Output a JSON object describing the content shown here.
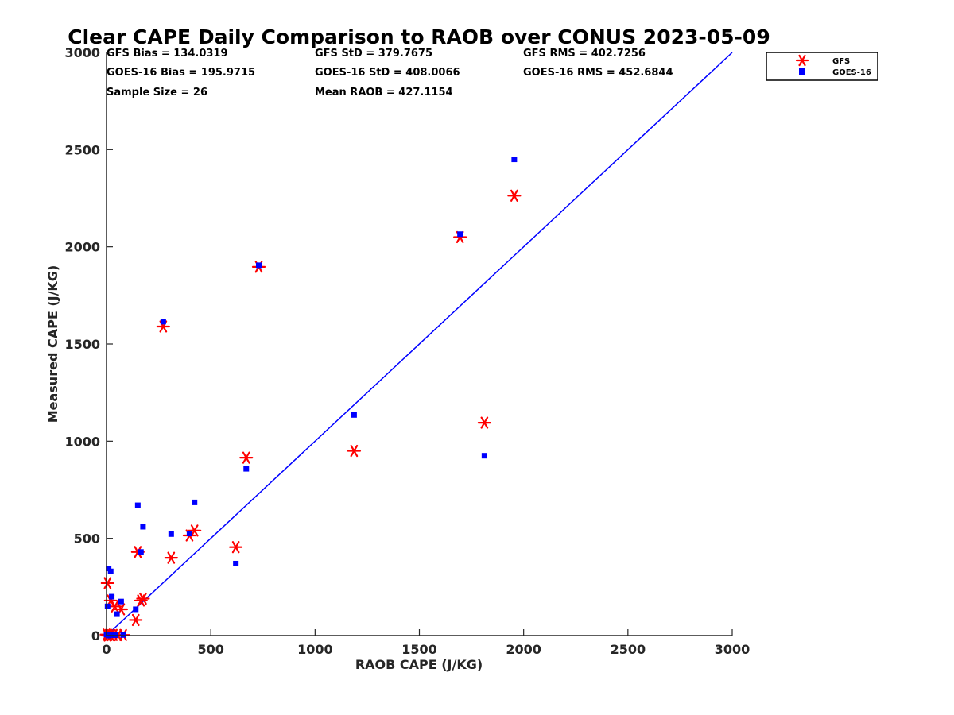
{
  "chart_data": {
    "type": "scatter",
    "title": "Clear CAPE Daily Comparison to RAOB over CONUS 2023-05-09",
    "xlabel": "RAOB CAPE (J/KG)",
    "ylabel": "Measured CAPE (J/KG)",
    "xlim": [
      0,
      3000
    ],
    "ylim": [
      0,
      3000
    ],
    "x_ticks": [
      0,
      500,
      1000,
      1500,
      2000,
      2500,
      3000
    ],
    "y_ticks": [
      0,
      500,
      1000,
      1500,
      2000,
      2500,
      3000
    ],
    "x_tick_labels": [
      "0",
      "500",
      "1000",
      "1500",
      "2000",
      "2500",
      "3000"
    ],
    "y_tick_labels": [
      "0",
      "500",
      "1000",
      "1500",
      "2000",
      "2500",
      "3000"
    ],
    "grid": false,
    "legend_position": "top-right",
    "reference_line": {
      "x": [
        0,
        3000
      ],
      "y": [
        0,
        3000
      ],
      "color": "#0000ff"
    },
    "stats": [
      [
        "GFS Bias = 134.0319",
        "GFS StD = 379.7675",
        "GFS RMS = 402.7256"
      ],
      [
        "GOES-16 Bias = 195.9715",
        "GOES-16 StD = 408.0066",
        "GOES-16 RMS = 452.6844"
      ],
      [
        "Sample Size = 26",
        "Mean RAOB = 427.1154",
        ""
      ]
    ],
    "series": [
      {
        "name": "GFS",
        "marker": "asterisk",
        "color": "#ff0000",
        "points": [
          [
            1955,
            2263
          ],
          [
            1695,
            2050
          ],
          [
            730,
            1897
          ],
          [
            272,
            1590
          ],
          [
            1812,
            1095
          ],
          [
            1187,
            950
          ],
          [
            670,
            915
          ],
          [
            422,
            540
          ],
          [
            398,
            515
          ],
          [
            620,
            455
          ],
          [
            150,
            430
          ],
          [
            310,
            400
          ],
          [
            5,
            270
          ],
          [
            20,
            180
          ],
          [
            40,
            150
          ],
          [
            70,
            135
          ],
          [
            175,
            190
          ],
          [
            165,
            180
          ],
          [
            140,
            80
          ],
          [
            0,
            5
          ],
          [
            10,
            3
          ],
          [
            20,
            2
          ],
          [
            35,
            3
          ],
          [
            55,
            2
          ],
          [
            80,
            3
          ],
          [
            5,
            0
          ]
        ]
      },
      {
        "name": "GOES-16",
        "marker": "square",
        "color": "#0000ff",
        "points": [
          [
            1955,
            2450
          ],
          [
            1695,
            2065
          ],
          [
            730,
            1905
          ],
          [
            272,
            1615
          ],
          [
            1812,
            925
          ],
          [
            1187,
            1135
          ],
          [
            670,
            858
          ],
          [
            422,
            685
          ],
          [
            398,
            525
          ],
          [
            620,
            370
          ],
          [
            150,
            670
          ],
          [
            310,
            522
          ],
          [
            175,
            560
          ],
          [
            165,
            430
          ],
          [
            10,
            345
          ],
          [
            20,
            330
          ],
          [
            25,
            200
          ],
          [
            5,
            150
          ],
          [
            70,
            175
          ],
          [
            50,
            110
          ],
          [
            140,
            135
          ],
          [
            0,
            5
          ],
          [
            25,
            3
          ],
          [
            40,
            2
          ],
          [
            80,
            3
          ],
          [
            10,
            0
          ]
        ]
      }
    ]
  }
}
